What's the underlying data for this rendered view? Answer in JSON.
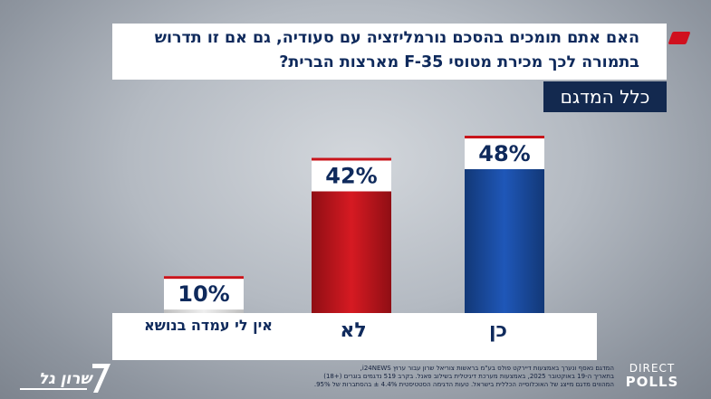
{
  "header": {
    "question": "האם אתם תומכים בהסכם נורמליזציה עם סעודיה, גם אם זו תדרוש בתמורה לכך מכירת מטוסי F-35 מארצות הברית?",
    "sample_label": "כלל המדגם"
  },
  "chart_data": {
    "type": "bar",
    "title": "האם אתם תומכים בהסכם נורמליזציה עם סעודיה, גם אם זו תדרוש בתמורה לכך מכירת מטוסי F-35 מארצות הברית?",
    "subtitle": "כלל המדגם",
    "categories": [
      "אין לי עמדה בנושא",
      "לא",
      "כן"
    ],
    "values": [
      10,
      42,
      48
    ],
    "value_labels": [
      "10%",
      "42%",
      "48%"
    ],
    "colors": [
      "#d4d4d4",
      "#c8141b",
      "#1b4aa0"
    ],
    "ylim": [
      0,
      50
    ],
    "xlabel": "",
    "ylabel": "",
    "unit": "%"
  },
  "footer": {
    "note_lines": [
      "המדגם נאסף ונערך באמצעות דיירקט פולס בע\"מ בראשות צוריאל שרון עבור ערוץ i24NEWS,",
      "בתאריך ה-19 באוקטובר 2025, באמצעות מערכת דיגיטלית בשילוב פאנל. בקרב 519 נדגמים בוגרים (+18)",
      "המהווים מדגם מייצג של האוכלוסייה הכללית בישראל. טעות הדגימה הסטטיסטית 4.4% ± בהסתברות של 95%."
    ],
    "logo_left_text": "שרון גל",
    "logo_right_line1": "DIRECT",
    "logo_right_line2": "POLLS"
  }
}
